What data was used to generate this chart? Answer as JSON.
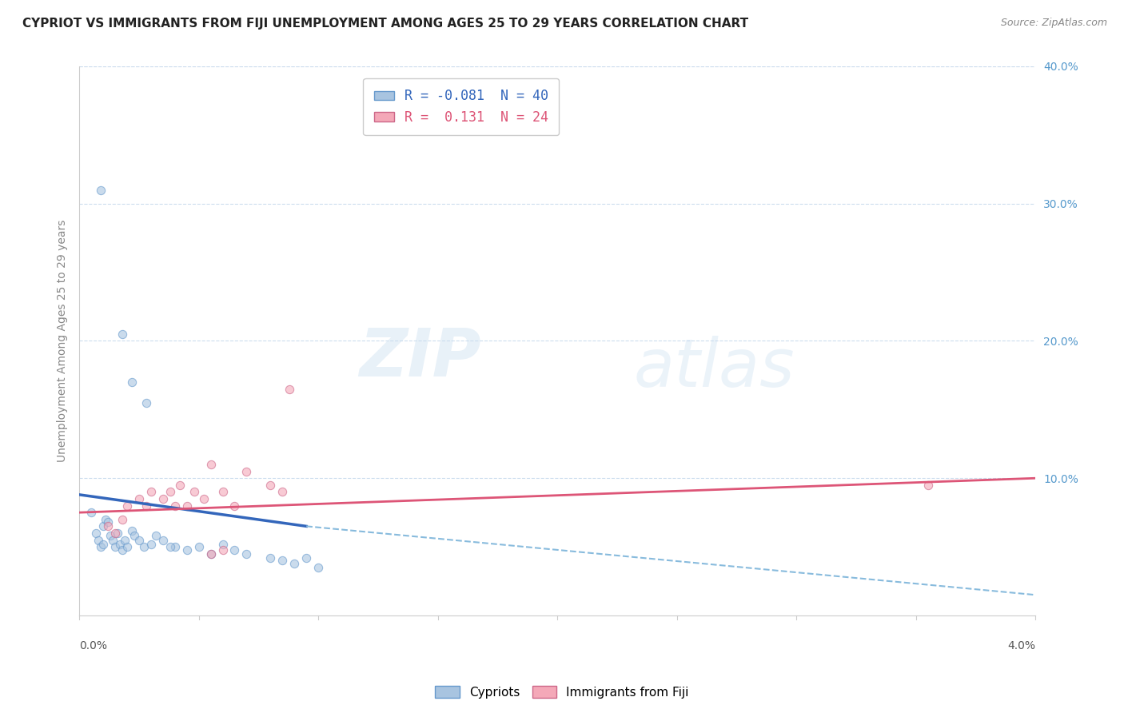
{
  "title": "CYPRIOT VS IMMIGRANTS FROM FIJI UNEMPLOYMENT AMONG AGES 25 TO 29 YEARS CORRELATION CHART",
  "source_text": "Source: ZipAtlas.com",
  "ylabel": "Unemployment Among Ages 25 to 29 years",
  "xlim": [
    0.0,
    4.0
  ],
  "ylim": [
    0.0,
    40.0
  ],
  "yticks": [
    10.0,
    20.0,
    30.0,
    40.0
  ],
  "ytick_labels": [
    "10.0%",
    "20.0%",
    "30.0%",
    "40.0%"
  ],
  "xtick_left": "0.0%",
  "xtick_right": "4.0%",
  "watermark_line1": "ZIP",
  "watermark_line2": "atlas",
  "legend_items": [
    {
      "label_r": "R = -0.081",
      "label_n": "N = 40",
      "color": "#a8c4e0"
    },
    {
      "label_r": "R =  0.131",
      "label_n": "N = 24",
      "color": "#f4a8b8"
    }
  ],
  "blue_scatter": [
    [
      0.05,
      7.5
    ],
    [
      0.07,
      6.0
    ],
    [
      0.08,
      5.5
    ],
    [
      0.09,
      5.0
    ],
    [
      0.1,
      5.2
    ],
    [
      0.1,
      6.5
    ],
    [
      0.11,
      7.0
    ],
    [
      0.12,
      6.8
    ],
    [
      0.13,
      5.8
    ],
    [
      0.14,
      5.5
    ],
    [
      0.15,
      5.0
    ],
    [
      0.16,
      6.0
    ],
    [
      0.17,
      5.2
    ],
    [
      0.18,
      4.8
    ],
    [
      0.19,
      5.5
    ],
    [
      0.2,
      5.0
    ],
    [
      0.22,
      6.2
    ],
    [
      0.23,
      5.8
    ],
    [
      0.25,
      5.5
    ],
    [
      0.27,
      5.0
    ],
    [
      0.3,
      5.2
    ],
    [
      0.32,
      5.8
    ],
    [
      0.35,
      5.5
    ],
    [
      0.4,
      5.0
    ],
    [
      0.45,
      4.8
    ],
    [
      0.5,
      5.0
    ],
    [
      0.55,
      4.5
    ],
    [
      0.6,
      5.2
    ],
    [
      0.65,
      4.8
    ],
    [
      0.7,
      4.5
    ],
    [
      0.8,
      4.2
    ],
    [
      0.85,
      4.0
    ],
    [
      0.9,
      3.8
    ],
    [
      0.95,
      4.2
    ],
    [
      1.0,
      3.5
    ],
    [
      0.09,
      31.0
    ],
    [
      0.18,
      20.5
    ],
    [
      0.22,
      17.0
    ],
    [
      0.28,
      15.5
    ],
    [
      0.38,
      5.0
    ]
  ],
  "pink_scatter": [
    [
      0.12,
      6.5
    ],
    [
      0.15,
      6.0
    ],
    [
      0.18,
      7.0
    ],
    [
      0.2,
      8.0
    ],
    [
      0.25,
      8.5
    ],
    [
      0.28,
      8.0
    ],
    [
      0.3,
      9.0
    ],
    [
      0.35,
      8.5
    ],
    [
      0.38,
      9.0
    ],
    [
      0.4,
      8.0
    ],
    [
      0.42,
      9.5
    ],
    [
      0.45,
      8.0
    ],
    [
      0.48,
      9.0
    ],
    [
      0.52,
      8.5
    ],
    [
      0.55,
      11.0
    ],
    [
      0.6,
      9.0
    ],
    [
      0.65,
      8.0
    ],
    [
      0.7,
      10.5
    ],
    [
      0.8,
      9.5
    ],
    [
      0.85,
      9.0
    ],
    [
      0.88,
      16.5
    ],
    [
      0.55,
      4.5
    ],
    [
      0.6,
      4.8
    ],
    [
      3.55,
      9.5
    ]
  ],
  "blue_line_solid": {
    "x": [
      0.0,
      0.95
    ],
    "y": [
      8.8,
      6.5
    ]
  },
  "blue_line_dashed": {
    "x": [
      0.95,
      4.0
    ],
    "y": [
      6.5,
      1.5
    ]
  },
  "pink_line": {
    "x": [
      0.0,
      4.0
    ],
    "y": [
      7.5,
      10.0
    ]
  },
  "title_fontsize": 11,
  "scatter_alpha": 0.6,
  "scatter_size": 55,
  "blue_color": "#a8c4e0",
  "blue_edge": "#6699cc",
  "pink_color": "#f4a8b8",
  "pink_edge": "#cc6688",
  "blue_line_color": "#3366bb",
  "blue_dashed_color": "#88bbdd",
  "pink_line_color": "#dd5577",
  "grid_color": "#ccddee",
  "axis_tick_color": "#5599cc",
  "ylabel_color": "#888888",
  "spine_color": "#cccccc"
}
